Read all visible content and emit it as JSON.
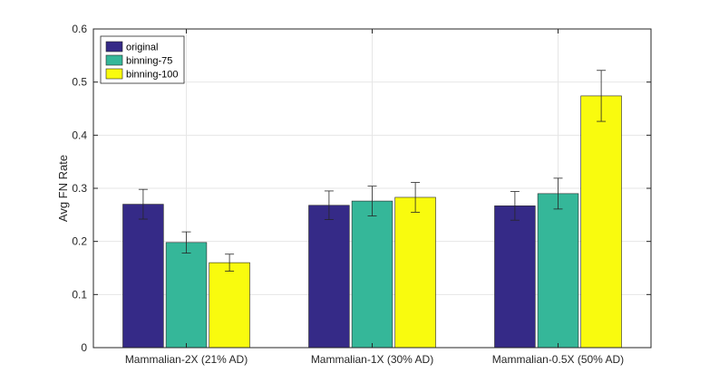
{
  "chart_data": {
    "type": "bar",
    "title": "",
    "xlabel": "",
    "ylabel": "Avg FN Rate",
    "ylim": [
      0,
      0.6
    ],
    "yticks": [
      "0",
      "0.1",
      "0.2",
      "0.3",
      "0.4",
      "0.5",
      "0.6"
    ],
    "grid": true,
    "legend_position": "top-left",
    "categories": [
      "Mammalian-2X (21% AD)",
      "Mammalian-1X (30% AD)",
      "Mammalian-0.5X (50% AD)"
    ],
    "series": [
      {
        "name": "original",
        "color": "#352a87",
        "values": [
          0.27,
          0.268,
          0.267
        ],
        "errors": [
          0.028,
          0.027,
          0.027
        ]
      },
      {
        "name": "binning-75",
        "color": "#35b799",
        "values": [
          0.198,
          0.276,
          0.29
        ],
        "errors": [
          0.02,
          0.028,
          0.029
        ]
      },
      {
        "name": "binning-100",
        "color": "#f9fb0e",
        "values": [
          0.16,
          0.283,
          0.474
        ],
        "errors": [
          0.016,
          0.028,
          0.048
        ]
      }
    ]
  }
}
